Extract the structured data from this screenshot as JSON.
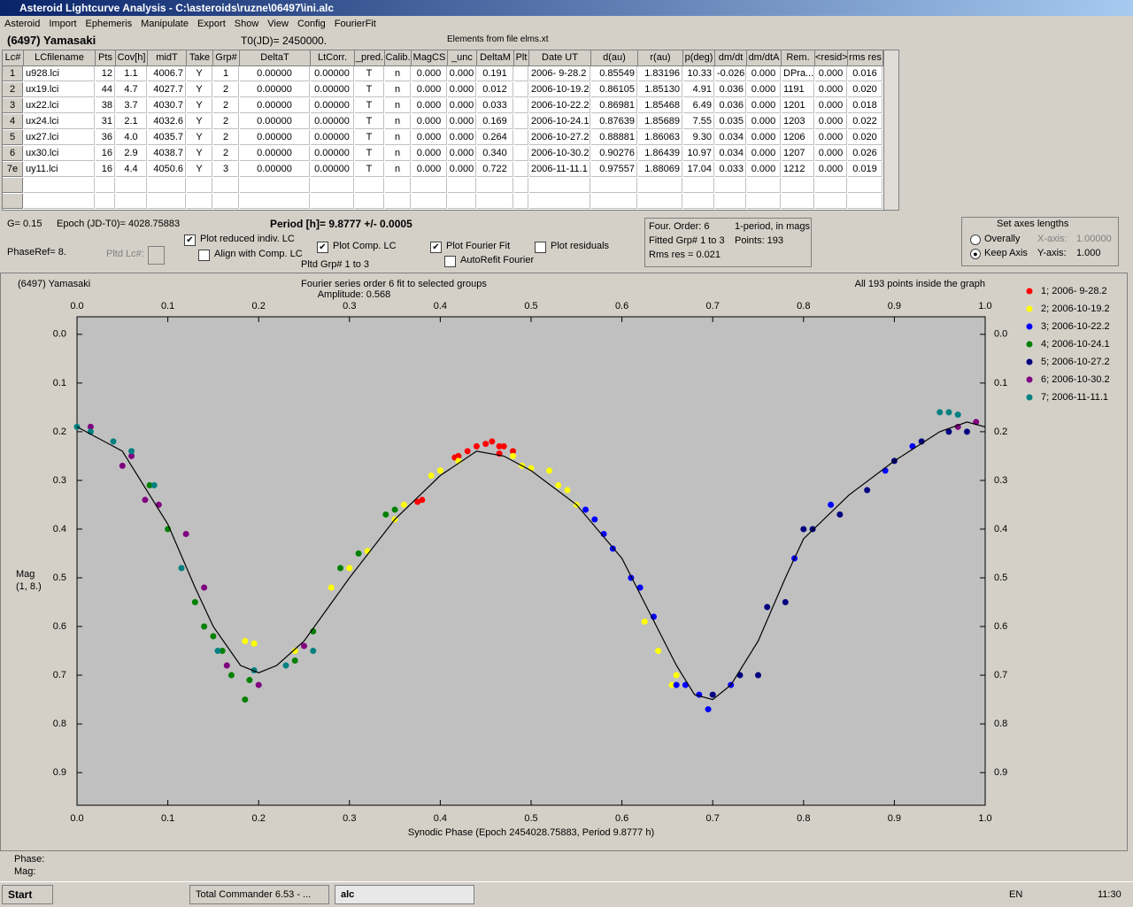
{
  "window": {
    "title": "Asteroid Lightcurve Analysis - C:\\asteroids\\ruzne\\06497\\ini.alc"
  },
  "menu": [
    "Asteroid",
    "Import",
    "Ephemeris",
    "Manipulate",
    "Export",
    "Show",
    "View",
    "Config",
    "FourierFit"
  ],
  "header": {
    "object": "(6497) Yamasaki",
    "t0": "T0(JD)= 2450000.",
    "elements": "Elements from file elms.xt"
  },
  "table": {
    "columns": [
      "Lc#",
      "LCfilename",
      "Pts",
      "Cov[h]",
      "midT",
      "Take",
      "Grp#",
      "DeltaT",
      "LtCorr.",
      "_pred.",
      "Calib.",
      "MagCS",
      "_unc",
      "DeltaM",
      "Plt",
      "Date UT",
      "d(au)",
      "r(au)",
      "p(deg)",
      "dm/dt",
      "dm/dtA",
      "Rem.",
      "<resid>",
      "rms res"
    ],
    "rows": [
      [
        "1",
        "u928.lci",
        "12",
        "1.1",
        "4006.7",
        "Y",
        "1",
        "0.00000",
        "0.00000",
        "T",
        "n",
        "0.000",
        "0.000",
        "0.191",
        "",
        "2006- 9-28.2",
        "0.85549",
        "1.83196",
        "10.33",
        "-0.026",
        "0.000",
        "DPra...",
        "0.000",
        "0.016"
      ],
      [
        "2",
        "ux19.lci",
        "44",
        "4.7",
        "4027.7",
        "Y",
        "2",
        "0.00000",
        "0.00000",
        "T",
        "n",
        "0.000",
        "0.000",
        "0.012",
        "",
        "2006-10-19.2",
        "0.86105",
        "1.85130",
        "4.91",
        "0.036",
        "0.000",
        "1191",
        "0.000",
        "0.020"
      ],
      [
        "3",
        "ux22.lci",
        "38",
        "3.7",
        "4030.7",
        "Y",
        "2",
        "0.00000",
        "0.00000",
        "T",
        "n",
        "0.000",
        "0.000",
        "0.033",
        "",
        "2006-10-22.2",
        "0.86981",
        "1.85468",
        "6.49",
        "0.036",
        "0.000",
        "1201",
        "0.000",
        "0.018"
      ],
      [
        "4",
        "ux24.lci",
        "31",
        "2.1",
        "4032.6",
        "Y",
        "2",
        "0.00000",
        "0.00000",
        "T",
        "n",
        "0.000",
        "0.000",
        "0.169",
        "",
        "2006-10-24.1",
        "0.87639",
        "1.85689",
        "7.55",
        "0.035",
        "0.000",
        "1203",
        "0.000",
        "0.022"
      ],
      [
        "5",
        "ux27.lci",
        "36",
        "4.0",
        "4035.7",
        "Y",
        "2",
        "0.00000",
        "0.00000",
        "T",
        "n",
        "0.000",
        "0.000",
        "0.264",
        "",
        "2006-10-27.2",
        "0.88881",
        "1.86063",
        "9.30",
        "0.034",
        "0.000",
        "1206",
        "0.000",
        "0.020"
      ],
      [
        "6",
        "ux30.lci",
        "16",
        "2.9",
        "4038.7",
        "Y",
        "2",
        "0.00000",
        "0.00000",
        "T",
        "n",
        "0.000",
        "0.000",
        "0.340",
        "",
        "2006-10-30.2",
        "0.90276",
        "1.86439",
        "10.97",
        "0.034",
        "0.000",
        "1207",
        "0.000",
        "0.026"
      ],
      [
        "7e",
        "uy11.lci",
        "16",
        "4.4",
        "4050.6",
        "Y",
        "3",
        "0.00000",
        "0.00000",
        "T",
        "n",
        "0.000",
        "0.000",
        "0.722",
        "",
        "2006-11-11.1",
        "0.97557",
        "1.88069",
        "17.04",
        "0.033",
        "0.000",
        "1212",
        "0.000",
        "0.019"
      ]
    ]
  },
  "controls": {
    "g": "G= 0.15",
    "epoch": "Epoch (JD-T0)= 4028.75883",
    "period": "Period [h]= 9.8777 +/- 0.0005",
    "phaseref": "PhaseRef= 8.",
    "pltd_lc": "Pltd Lc#:",
    "pltd_grp": "Pltd Grp#  1  to  3",
    "checkboxes": [
      {
        "label": "Plot reduced indiv. LC",
        "checked": true
      },
      {
        "label": "Align with Comp. LC",
        "checked": false
      },
      {
        "label": "Plot Comp. LC",
        "checked": true
      },
      {
        "label": "Plot Fourier Fit",
        "checked": true
      },
      {
        "label": "AutoRefit Fourier",
        "checked": false
      },
      {
        "label": "Plot residuals",
        "checked": false
      }
    ],
    "info": [
      "Four. Order:  6",
      "1-period, in mags",
      "Fitted Grp# 1 to 3",
      "Points: 193",
      "Rms res     = 0.021"
    ],
    "axes": {
      "title": "Set axes lengths",
      "options": [
        {
          "label": "Overally",
          "selected": false
        },
        {
          "label": "Keep Axis",
          "selected": true
        }
      ],
      "x_label": "X-axis:",
      "x_value": "1.00000",
      "y_label": "Y-axis:",
      "y_value": "1.000"
    }
  },
  "chart_data": {
    "type": "scatter",
    "object": "(6497) Yamasaki",
    "title": "Fourier series order 6 fit to selected groups",
    "subtitle": "Amplitude: 0.568",
    "note": "All 193 points inside the graph",
    "ylabel": [
      "Mag",
      "(1, 8.)"
    ],
    "xlabel": "Synodic Phase (Epoch 2454028.75883, Period 9.8777 h)",
    "xlim": [
      0,
      1
    ],
    "ylim": [
      -0.036,
      0.967
    ],
    "y_inverted": true,
    "xticks": [
      {
        "value": 0,
        "label": "0.0"
      },
      0.1,
      0.2,
      0.3,
      0.4,
      0.5,
      0.6,
      0.7,
      0.8,
      0.9,
      {
        "value": 1,
        "label": "1.0"
      }
    ],
    "yticks": [
      {
        "value": 0,
        "label": "0.0"
      },
      0.1,
      0.2,
      0.3,
      0.4,
      0.5,
      0.6,
      0.7,
      0.8,
      0.9
    ],
    "fit": {
      "color": "#000000",
      "x": [
        0,
        0.05,
        0.1,
        0.13,
        0.15,
        0.18,
        0.2,
        0.22,
        0.25,
        0.3,
        0.35,
        0.4,
        0.44,
        0.47,
        0.5,
        0.55,
        0.6,
        0.63,
        0.66,
        0.68,
        0.7,
        0.72,
        0.75,
        0.78,
        0.8,
        0.85,
        0.9,
        0.95,
        0.98,
        1
      ],
      "values": [
        0.19,
        0.24,
        0.39,
        0.52,
        0.6,
        0.68,
        0.695,
        0.68,
        0.63,
        0.5,
        0.38,
        0.29,
        0.24,
        0.25,
        0.28,
        0.35,
        0.46,
        0.57,
        0.68,
        0.74,
        0.75,
        0.72,
        0.63,
        0.5,
        0.42,
        0.33,
        0.26,
        0.2,
        0.18,
        0.19
      ]
    },
    "series": [
      {
        "name": "1; 2006- 9-28.2",
        "color": "#ff0000",
        "x": [
          0.375,
          0.38,
          0.416,
          0.42,
          0.43,
          0.44,
          0.45,
          0.457,
          0.465,
          0.47,
          0.48,
          0.465
        ],
        "values": [
          0.344,
          0.34,
          0.253,
          0.25,
          0.24,
          0.23,
          0.225,
          0.22,
          0.23,
          0.23,
          0.24,
          0.245
        ]
      },
      {
        "name": "2; 2006-10-19.2",
        "color": "#ffff00",
        "x": [
          0.185,
          0.195,
          0.24,
          0.28,
          0.3,
          0.32,
          0.35,
          0.36,
          0.39,
          0.4,
          0.42,
          0.48,
          0.49,
          0.5,
          0.52,
          0.53,
          0.54,
          0.55,
          0.625,
          0.64,
          0.655,
          0.66
        ],
        "values": [
          0.63,
          0.635,
          0.65,
          0.52,
          0.48,
          0.445,
          0.38,
          0.35,
          0.29,
          0.28,
          0.26,
          0.25,
          0.27,
          0.275,
          0.28,
          0.31,
          0.32,
          0.35,
          0.59,
          0.65,
          0.72,
          0.7
        ]
      },
      {
        "name": "3; 2006-10-22.2",
        "color": "#0000ff",
        "x": [
          0.56,
          0.57,
          0.58,
          0.59,
          0.61,
          0.62,
          0.635,
          0.66,
          0.67,
          0.685,
          0.695,
          0.72,
          0.79,
          0.83,
          0.89,
          0.92
        ],
        "values": [
          0.36,
          0.38,
          0.41,
          0.44,
          0.5,
          0.52,
          0.58,
          0.72,
          0.72,
          0.74,
          0.77,
          0.72,
          0.46,
          0.35,
          0.28,
          0.23
        ]
      },
      {
        "name": "4; 2006-10-24.1",
        "color": "#008000",
        "x": [
          0.08,
          0.1,
          0.13,
          0.14,
          0.15,
          0.16,
          0.17,
          0.185,
          0.19,
          0.24,
          0.26,
          0.29,
          0.31,
          0.34,
          0.35
        ],
        "values": [
          0.31,
          0.4,
          0.55,
          0.6,
          0.62,
          0.65,
          0.7,
          0.75,
          0.71,
          0.67,
          0.61,
          0.48,
          0.45,
          0.37,
          0.36
        ]
      },
      {
        "name": "5; 2006-10-27.2",
        "color": "#000080",
        "x": [
          0.7,
          0.73,
          0.75,
          0.76,
          0.78,
          0.8,
          0.81,
          0.84,
          0.87,
          0.9,
          0.93,
          0.96,
          0.98
        ],
        "values": [
          0.74,
          0.7,
          0.7,
          0.56,
          0.55,
          0.4,
          0.4,
          0.37,
          0.32,
          0.26,
          0.22,
          0.2,
          0.2
        ]
      },
      {
        "name": "6; 2006-10-30.2",
        "color": "#800080",
        "x": [
          0.015,
          0.05,
          0.06,
          0.075,
          0.09,
          0.12,
          0.14,
          0.165,
          0.2,
          0.25,
          0.97,
          0.99
        ],
        "values": [
          0.19,
          0.27,
          0.25,
          0.34,
          0.35,
          0.41,
          0.52,
          0.68,
          0.72,
          0.64,
          0.19,
          0.18
        ]
      },
      {
        "name": "7; 2006-11-11.1",
        "color": "#008080",
        "x": [
          0,
          0.015,
          0.04,
          0.06,
          0.085,
          0.115,
          0.155,
          0.195,
          0.23,
          0.26,
          0.95,
          0.96,
          0.97
        ],
        "values": [
          0.19,
          0.2,
          0.22,
          0.24,
          0.31,
          0.48,
          0.65,
          0.69,
          0.68,
          0.65,
          0.16,
          0.16,
          0.165
        ]
      }
    ]
  },
  "status": {
    "phase": "Phase:",
    "mag": "Mag:"
  },
  "taskbar": {
    "start": "Start",
    "tasks": [
      "Total Commander 6.53 - ...",
      "alc"
    ],
    "lang": "EN",
    "clock": "11:30"
  }
}
